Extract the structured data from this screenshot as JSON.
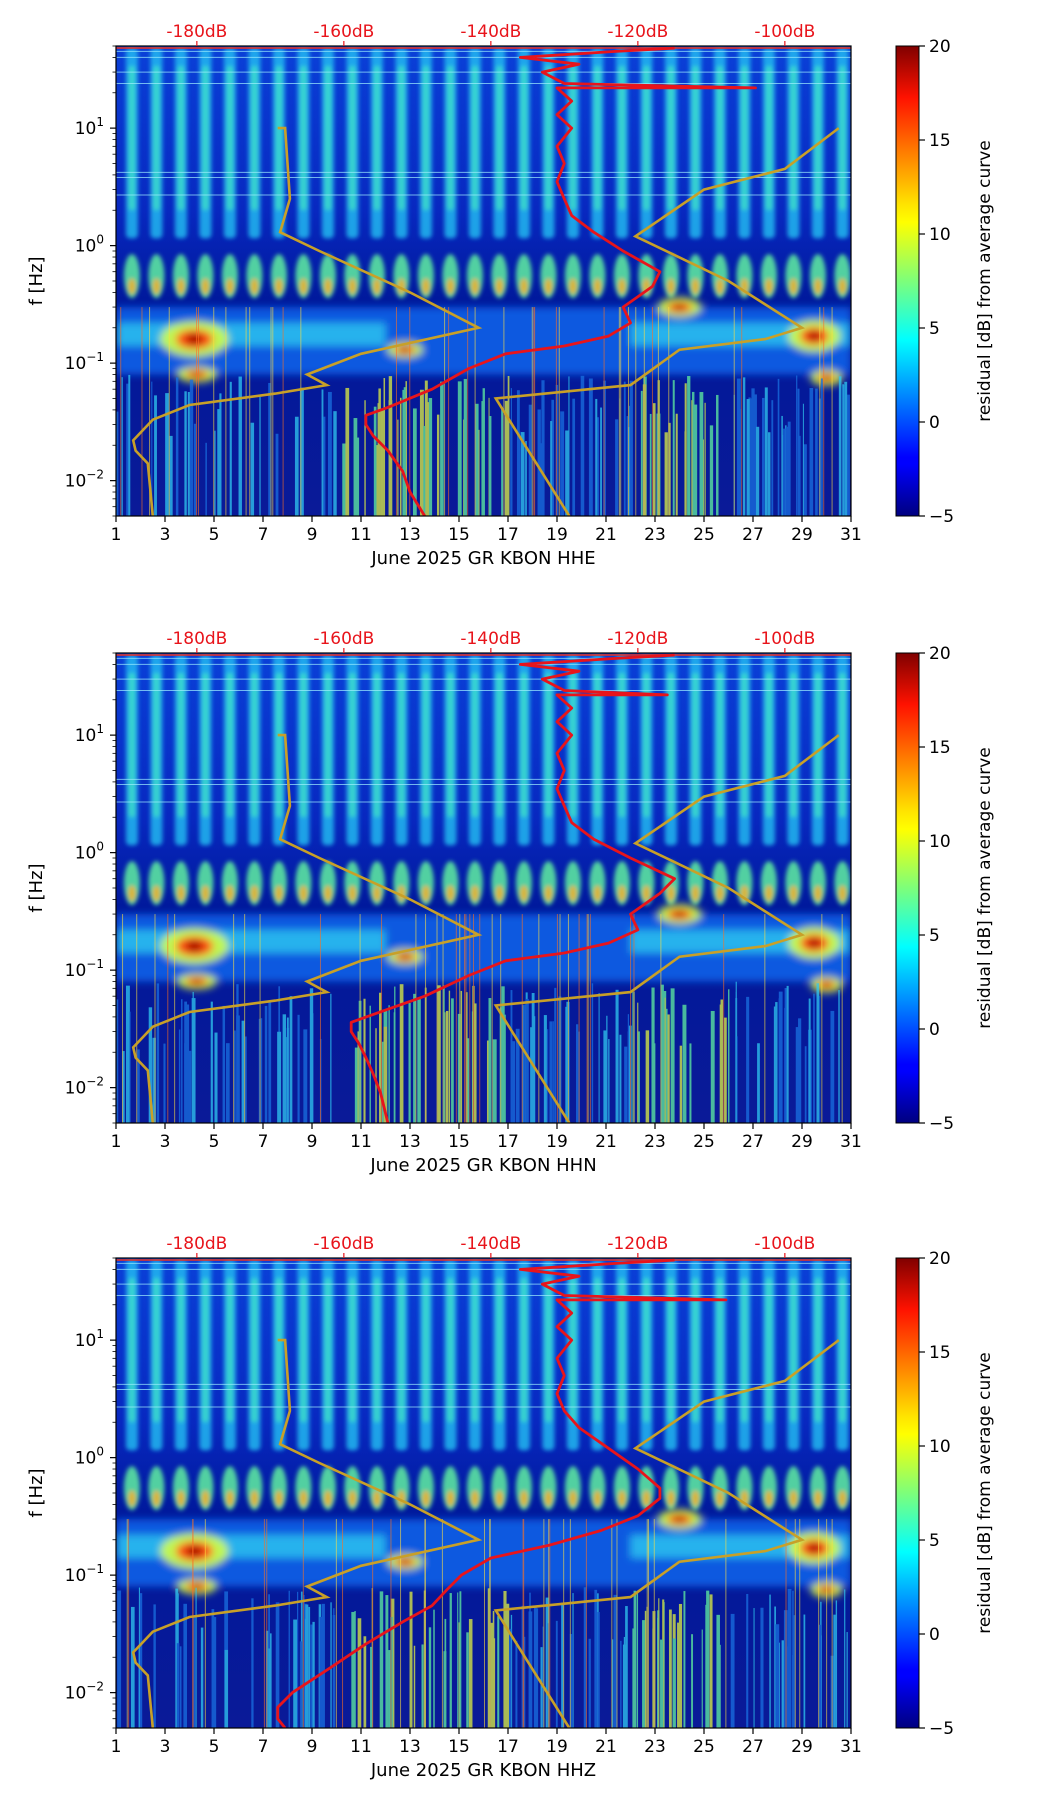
{
  "figure": {
    "description": "Residual spectrogram of seismic station KBON for June 2025, three channels"
  },
  "colors": {
    "red_curve": "#e8141b",
    "noise_model": "#c8a028",
    "top_axis_text": "#e8141b",
    "axis": "#000000"
  },
  "colormap": {
    "name": "jet",
    "range": [
      -5,
      20
    ],
    "ticks": [
      "20",
      "15",
      "10",
      "5",
      "0",
      "−5"
    ],
    "tick_values": [
      20,
      15,
      10,
      5,
      0,
      -5
    ],
    "label": "residual [dB] from average curve"
  },
  "axes_common": {
    "ylabel": "f [Hz]",
    "yticks": [
      "10−²",
      "10−¹",
      "10⁰",
      "10¹"
    ],
    "ytick_labels": [
      {
        "base": "10",
        "exp": "−2",
        "value": 0.01
      },
      {
        "base": "10",
        "exp": "−1",
        "value": 0.1
      },
      {
        "base": "10",
        "exp": "0",
        "value": 1
      },
      {
        "base": "10",
        "exp": "1",
        "value": 10
      }
    ],
    "ylim": [
      0.005,
      50
    ],
    "xlim": [
      1,
      31
    ],
    "xticks": [
      "1",
      "3",
      "5",
      "7",
      "9",
      "11",
      "13",
      "15",
      "17",
      "19",
      "21",
      "23",
      "25",
      "27",
      "29",
      "31"
    ],
    "xtick_values": [
      1,
      3,
      5,
      7,
      9,
      11,
      13,
      15,
      17,
      19,
      21,
      23,
      25,
      27,
      29,
      31
    ],
    "top_ticks": [
      "-180dB",
      "-160dB",
      "-140dB",
      "-120dB",
      "-100dB"
    ],
    "top_tick_values": [
      -180,
      -160,
      -140,
      -120,
      -100
    ],
    "top_axis_range_db": [
      -191,
      -91
    ]
  },
  "chart_data": [
    {
      "type": "heatmap",
      "title": "",
      "xlabel": "June 2025 GR KBON  HHE",
      "ylabel": "f [Hz]",
      "xlim": [
        1,
        31
      ],
      "ylim": [
        0.005,
        50
      ],
      "noise_model_curve": {
        "name": "noise model (gold)",
        "points": [
          [
            2.5,
            0.005
          ],
          [
            2.3,
            0.014
          ],
          [
            1.8,
            0.018
          ],
          [
            1.7,
            0.022
          ],
          [
            2.5,
            0.033
          ],
          [
            4.0,
            0.044
          ],
          [
            7.5,
            0.055
          ],
          [
            9.6,
            0.065
          ],
          [
            8.8,
            0.08
          ],
          [
            11.0,
            0.12
          ],
          [
            15.8,
            0.2
          ],
          [
            13.0,
            0.4
          ],
          [
            9.3,
            0.9
          ],
          [
            7.7,
            1.3
          ],
          [
            8.1,
            2.5
          ],
          [
            7.9,
            10
          ],
          [
            7.6,
            10
          ]
        ]
      },
      "noise_model_curve_right": {
        "name": "noise model right (gold)",
        "points": [
          [
            19.5,
            0.005
          ],
          [
            16.5,
            0.05
          ],
          [
            22.0,
            0.065
          ],
          [
            24.0,
            0.13
          ],
          [
            27.5,
            0.16
          ],
          [
            29.0,
            0.2
          ],
          [
            26.0,
            0.5
          ],
          [
            22.2,
            1.2
          ],
          [
            25.0,
            3.0
          ],
          [
            28.3,
            4.5
          ],
          [
            30.5,
            10
          ]
        ]
      },
      "red_curve": {
        "name": "average PSD (red)",
        "points_db": [
          [
            -149,
            0.005
          ],
          [
            -151,
            0.008
          ],
          [
            -152,
            0.012
          ],
          [
            -154,
            0.018
          ],
          [
            -156,
            0.024
          ],
          [
            -157,
            0.03
          ],
          [
            -157,
            0.036
          ],
          [
            -154,
            0.042
          ],
          [
            -148,
            0.06
          ],
          [
            -143,
            0.09
          ],
          [
            -138,
            0.12
          ],
          [
            -130,
            0.14
          ],
          [
            -124,
            0.17
          ],
          [
            -121,
            0.22
          ],
          [
            -122,
            0.3
          ],
          [
            -118,
            0.45
          ],
          [
            -117,
            0.6
          ],
          [
            -122,
            0.9
          ],
          [
            -126,
            1.3
          ],
          [
            -129,
            1.8
          ],
          [
            -130,
            2.5
          ],
          [
            -131,
            3.5
          ],
          [
            -130,
            5
          ],
          [
            -131,
            7
          ],
          [
            -129,
            10
          ],
          [
            -131,
            13
          ],
          [
            -129,
            17
          ],
          [
            -131,
            22
          ],
          [
            -104,
            22
          ],
          [
            -130,
            24
          ],
          [
            -133,
            30
          ],
          [
            -128,
            35
          ],
          [
            -136,
            40
          ],
          [
            -123,
            45
          ],
          [
            -115,
            48
          ]
        ]
      }
    },
    {
      "type": "heatmap",
      "title": "",
      "xlabel": "June 2025 GR KBON  HHN",
      "ylabel": "f [Hz]",
      "xlim": [
        1,
        31
      ],
      "ylim": [
        0.005,
        50
      ],
      "noise_model_curve": {
        "name": "noise model (gold)",
        "points": [
          [
            2.5,
            0.005
          ],
          [
            2.3,
            0.014
          ],
          [
            1.8,
            0.018
          ],
          [
            1.7,
            0.022
          ],
          [
            2.5,
            0.033
          ],
          [
            4.0,
            0.044
          ],
          [
            7.5,
            0.055
          ],
          [
            9.6,
            0.065
          ],
          [
            8.8,
            0.08
          ],
          [
            11.0,
            0.12
          ],
          [
            15.8,
            0.2
          ],
          [
            13.0,
            0.4
          ],
          [
            9.3,
            0.9
          ],
          [
            7.7,
            1.3
          ],
          [
            8.1,
            2.5
          ],
          [
            7.9,
            10
          ],
          [
            7.6,
            10
          ]
        ]
      },
      "noise_model_curve_right": {
        "name": "noise model right (gold)",
        "points": [
          [
            19.5,
            0.005
          ],
          [
            16.5,
            0.05
          ],
          [
            22.0,
            0.065
          ],
          [
            24.0,
            0.13
          ],
          [
            27.5,
            0.16
          ],
          [
            29.0,
            0.2
          ],
          [
            26.0,
            0.5
          ],
          [
            22.2,
            1.2
          ],
          [
            25.0,
            3.0
          ],
          [
            28.3,
            4.5
          ],
          [
            30.5,
            10
          ]
        ]
      },
      "red_curve": {
        "name": "average PSD (red)",
        "points_db": [
          [
            -154,
            0.005
          ],
          [
            -155,
            0.009
          ],
          [
            -156,
            0.013
          ],
          [
            -157,
            0.018
          ],
          [
            -158,
            0.024
          ],
          [
            -159,
            0.03
          ],
          [
            -159,
            0.036
          ],
          [
            -156,
            0.042
          ],
          [
            -149,
            0.06
          ],
          [
            -143,
            0.09
          ],
          [
            -138,
            0.12
          ],
          [
            -130,
            0.14
          ],
          [
            -124,
            0.17
          ],
          [
            -120,
            0.22
          ],
          [
            -121,
            0.3
          ],
          [
            -117,
            0.45
          ],
          [
            -115,
            0.6
          ],
          [
            -121,
            0.9
          ],
          [
            -126,
            1.3
          ],
          [
            -129,
            1.8
          ],
          [
            -130,
            2.5
          ],
          [
            -131,
            3.5
          ],
          [
            -130,
            5
          ],
          [
            -131,
            7
          ],
          [
            -129,
            10
          ],
          [
            -131,
            13
          ],
          [
            -129,
            17
          ],
          [
            -131,
            22
          ],
          [
            -116,
            22
          ],
          [
            -130,
            24
          ],
          [
            -133,
            30
          ],
          [
            -128,
            35
          ],
          [
            -136,
            40
          ],
          [
            -123,
            45
          ],
          [
            -115,
            48
          ]
        ]
      }
    },
    {
      "type": "heatmap",
      "title": "",
      "xlabel": "June 2025 GR KBON  HHZ",
      "ylabel": "f [Hz]",
      "xlim": [
        1,
        31
      ],
      "ylim": [
        0.005,
        50
      ],
      "noise_model_curve": {
        "name": "noise model (gold)",
        "points": [
          [
            2.5,
            0.005
          ],
          [
            2.3,
            0.014
          ],
          [
            1.8,
            0.018
          ],
          [
            1.7,
            0.022
          ],
          [
            2.5,
            0.033
          ],
          [
            4.0,
            0.044
          ],
          [
            7.5,
            0.055
          ],
          [
            9.6,
            0.065
          ],
          [
            8.8,
            0.08
          ],
          [
            11.0,
            0.12
          ],
          [
            15.8,
            0.2
          ],
          [
            13.0,
            0.4
          ],
          [
            9.3,
            0.9
          ],
          [
            7.7,
            1.3
          ],
          [
            8.1,
            2.5
          ],
          [
            7.9,
            10
          ],
          [
            7.6,
            10
          ]
        ]
      },
      "noise_model_curve_right": {
        "name": "noise model right (gold)",
        "points": [
          [
            19.5,
            0.005
          ],
          [
            16.5,
            0.05
          ],
          [
            22.0,
            0.065
          ],
          [
            24.0,
            0.13
          ],
          [
            27.5,
            0.16
          ],
          [
            29.0,
            0.2
          ],
          [
            26.0,
            0.5
          ],
          [
            22.2,
            1.2
          ],
          [
            25.0,
            3.0
          ],
          [
            28.3,
            4.5
          ],
          [
            30.5,
            10
          ]
        ]
      },
      "red_curve": {
        "name": "average PSD (red)",
        "points_db": [
          [
            -168,
            0.005
          ],
          [
            -169,
            0.006
          ],
          [
            -169,
            0.0075
          ],
          [
            -167,
            0.01
          ],
          [
            -162,
            0.016
          ],
          [
            -157,
            0.026
          ],
          [
            -152,
            0.04
          ],
          [
            -148,
            0.055
          ],
          [
            -146,
            0.075
          ],
          [
            -144,
            0.1
          ],
          [
            -140,
            0.14
          ],
          [
            -132,
            0.18
          ],
          [
            -125,
            0.24
          ],
          [
            -120,
            0.32
          ],
          [
            -117,
            0.45
          ],
          [
            -117,
            0.55
          ],
          [
            -120,
            0.8
          ],
          [
            -124,
            1.2
          ],
          [
            -128,
            1.8
          ],
          [
            -130,
            2.5
          ],
          [
            -131,
            3.5
          ],
          [
            -130,
            5
          ],
          [
            -131,
            7
          ],
          [
            -129,
            10
          ],
          [
            -131,
            13
          ],
          [
            -129,
            17
          ],
          [
            -131,
            22
          ],
          [
            -108,
            22
          ],
          [
            -130,
            24
          ],
          [
            -133,
            30
          ],
          [
            -128,
            35
          ],
          [
            -136,
            40
          ],
          [
            -123,
            45
          ],
          [
            -115,
            48
          ]
        ]
      }
    }
  ]
}
